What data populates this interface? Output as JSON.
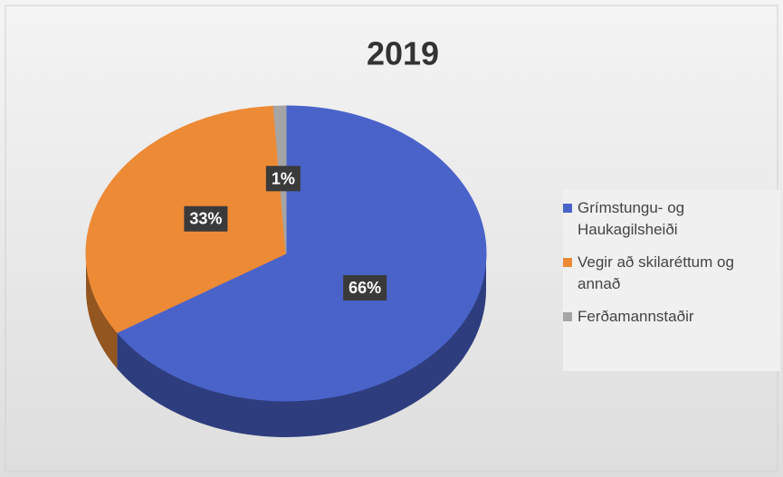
{
  "chart_data": {
    "type": "pie",
    "title": "2019",
    "categories": [
      "Grímstungu- og Haukagilsheiði",
      "Vegir að skilaréttum og annað",
      "Ferðamannstaðir"
    ],
    "values": [
      66,
      33,
      1
    ],
    "value_labels": [
      "66%",
      "33%",
      "1%"
    ],
    "colors": [
      "#4a63c9",
      "#ed8a36",
      "#a5a5a5"
    ],
    "legend": "right"
  }
}
